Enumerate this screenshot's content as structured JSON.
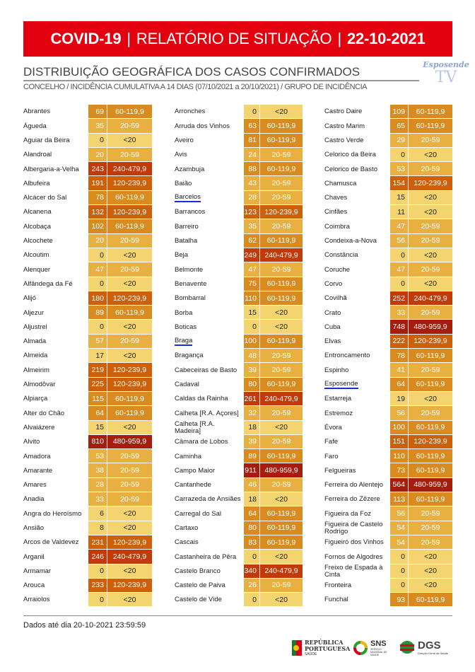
{
  "header": {
    "covid": "COVID-19",
    "sep": "|",
    "report": "RELATÓRIO DE SITUAÇÃO",
    "date": "22-10-2021"
  },
  "title": "DISTRIBUIÇÃO GEOGRÁFICA DOS CASOS CONFIRMADOS",
  "subtitle": "CONCELHO / INCIDÊNCIA CUMULATIVA A 14 DIAS (07/10/2021 a 20/10/2021) / GRUPO DE INCIDÊNCIA",
  "watermark": {
    "line1": "Esposende",
    "line2": "TV"
  },
  "group_colors": {
    "<20": "#f3d46e",
    "20-59": "#e8b041",
    "60-119,9": "#da8b1f",
    "120-239,9": "#cd600b",
    "240-479,9": "#c23a07",
    "480-959,9": "#a61c0d"
  },
  "columns": [
    [
      [
        "Abrantes",
        69,
        "60-119,9"
      ],
      [
        "Águeda",
        35,
        "20-59"
      ],
      [
        "Aguiar da Beira",
        0,
        "<20"
      ],
      [
        "Alandroal",
        20,
        "20-59"
      ],
      [
        "Albergaria-a-Velha",
        243,
        "240-479,9"
      ],
      [
        "Albufeira",
        191,
        "120-239,9"
      ],
      [
        "Alcácer do Sal",
        78,
        "60-119,9"
      ],
      [
        "Alcanena",
        132,
        "120-239,9"
      ],
      [
        "Alcobaça",
        102,
        "60-119,9"
      ],
      [
        "Alcochete",
        20,
        "20-59"
      ],
      [
        "Alcoutim",
        0,
        "<20"
      ],
      [
        "Alenquer",
        47,
        "20-59"
      ],
      [
        "Alfândega da Fé",
        0,
        "<20"
      ],
      [
        "Alijó",
        180,
        "120-239,9"
      ],
      [
        "Aljezur",
        89,
        "60-119,9"
      ],
      [
        "Aljustrel",
        0,
        "<20"
      ],
      [
        "Almada",
        57,
        "20-59"
      ],
      [
        "Almeida",
        17,
        "<20"
      ],
      [
        "Almeirim",
        219,
        "120-239,9"
      ],
      [
        "Almodôvar",
        225,
        "120-239,9"
      ],
      [
        "Alpiarça",
        115,
        "60-119,9"
      ],
      [
        "Alter do Chão",
        64,
        "60-119,9"
      ],
      [
        "Alvaiázere",
        15,
        "<20"
      ],
      [
        "Alvito",
        810,
        "480-959,9"
      ],
      [
        "Amadora",
        53,
        "20-59"
      ],
      [
        "Amarante",
        38,
        "20-59"
      ],
      [
        "Amares",
        28,
        "20-59"
      ],
      [
        "Anadia",
        33,
        "20-59"
      ],
      [
        "Angra do Heroísmo",
        6,
        "<20"
      ],
      [
        "Ansião",
        8,
        "<20"
      ],
      [
        "Arcos de Valdevez",
        231,
        "120-239,9"
      ],
      [
        "Arganil",
        246,
        "240-479,9"
      ],
      [
        "Armamar",
        0,
        "<20"
      ],
      [
        "Arouca",
        233,
        "120-239,9"
      ],
      [
        "Arraiolos",
        0,
        "<20"
      ]
    ],
    [
      [
        "Arronches",
        0,
        "<20"
      ],
      [
        "Arruda dos Vinhos",
        63,
        "60-119,9"
      ],
      [
        "Aveiro",
        81,
        "60-119,9"
      ],
      [
        "Avis",
        24,
        "20-59"
      ],
      [
        "Azambuja",
        88,
        "60-119,9"
      ],
      [
        "Baião",
        43,
        "20-59"
      ],
      [
        "Barcelos",
        28,
        "20-59"
      ],
      [
        "Barrancos",
        123,
        "120-239,9"
      ],
      [
        "Barreiro",
        35,
        "20-59"
      ],
      [
        "Batalha",
        62,
        "60-119,9"
      ],
      [
        "Beja",
        249,
        "240-479,9"
      ],
      [
        "Belmonte",
        47,
        "20-59"
      ],
      [
        "Benavente",
        75,
        "60-119,9"
      ],
      [
        "Bombarral",
        110,
        "60-119,9"
      ],
      [
        "Borba",
        15,
        "<20"
      ],
      [
        "Boticas",
        0,
        "<20"
      ],
      [
        "Braga",
        100,
        "60-119,9"
      ],
      [
        "Bragança",
        48,
        "20-59"
      ],
      [
        "Cabeceiras de Basto",
        39,
        "20-59"
      ],
      [
        "Cadaval",
        80,
        "60-119,9"
      ],
      [
        "Caldas da Rainha",
        261,
        "240-479,9"
      ],
      [
        "Calheta [R.A. Açores]",
        32,
        "20-59"
      ],
      [
        "Calheta [R.A. Madeira]",
        18,
        "<20"
      ],
      [
        "Câmara de Lobos",
        39,
        "20-59"
      ],
      [
        "Caminha",
        89,
        "60-119,9"
      ],
      [
        "Campo Maior",
        911,
        "480-959,9"
      ],
      [
        "Cantanhede",
        46,
        "20-59"
      ],
      [
        "Carrazeda de Ansiães",
        18,
        "<20"
      ],
      [
        "Carregal do Sal",
        64,
        "60-119,9"
      ],
      [
        "Cartaxo",
        80,
        "60-119,9"
      ],
      [
        "Cascais",
        83,
        "60-119,9"
      ],
      [
        "Castanheira de Pêra",
        0,
        "<20"
      ],
      [
        "Castelo Branco",
        340,
        "240-479,9"
      ],
      [
        "Castelo de Paiva",
        26,
        "20-59"
      ],
      [
        "Castelo de Vide",
        0,
        "<20"
      ]
    ],
    [
      [
        "Castro Daire",
        109,
        "60-119,9"
      ],
      [
        "Castro Marim",
        65,
        "60-119,9"
      ],
      [
        "Castro Verde",
        29,
        "20-59"
      ],
      [
        "Celorico da Beira",
        0,
        "<20"
      ],
      [
        "Celorico de Basto",
        53,
        "20-59"
      ],
      [
        "Chamusca",
        154,
        "120-239,9"
      ],
      [
        "Chaves",
        15,
        "<20"
      ],
      [
        "Cinfães",
        11,
        "<20"
      ],
      [
        "Coimbra",
        47,
        "20-59"
      ],
      [
        "Condeixa-a-Nova",
        56,
        "20-59"
      ],
      [
        "Constância",
        0,
        "<20"
      ],
      [
        "Coruche",
        47,
        "20-59"
      ],
      [
        "Corvo",
        0,
        "<20"
      ],
      [
        "Covilhã",
        252,
        "240-479,9"
      ],
      [
        "Crato",
        33,
        "20-59"
      ],
      [
        "Cuba",
        748,
        "480-959,9"
      ],
      [
        "Elvas",
        222,
        "120-239,9"
      ],
      [
        "Entroncamento",
        78,
        "60-119,9"
      ],
      [
        "Espinho",
        41,
        "20-59"
      ],
      [
        "Esposende",
        64,
        "60-119,9"
      ],
      [
        "Estarreja",
        19,
        "<20"
      ],
      [
        "Estremoz",
        56,
        "20-59"
      ],
      [
        "Évora",
        100,
        "60-119,9"
      ],
      [
        "Fafe",
        151,
        "120-239,9"
      ],
      [
        "Faro",
        110,
        "60-119,9"
      ],
      [
        "Felgueiras",
        73,
        "60-119,9"
      ],
      [
        "Ferreira do Alentejo",
        564,
        "480-959,9"
      ],
      [
        "Ferreira do Zêzere",
        113,
        "60-119,9"
      ],
      [
        "Figueira da Foz",
        56,
        "20-59"
      ],
      [
        "Figueira de Castelo Rodrigo",
        54,
        "20-59"
      ],
      [
        "Figueiró dos Vinhos",
        54,
        "20-59"
      ],
      [
        "Fornos de Algodres",
        0,
        "<20"
      ],
      [
        "Freixo de Espada à Cinta",
        0,
        "<20"
      ],
      [
        "Fronteira",
        0,
        "<20"
      ],
      [
        "Funchal",
        93,
        "60-119,9"
      ]
    ]
  ],
  "highlighted": [
    "Barcelos",
    "Braga",
    "Esposende"
  ],
  "footer": {
    "date": "Dados até dia 20-10-2021 23:59:59",
    "logos": {
      "rp": "REPÚBLICA PORTUGUESA",
      "rp_sub": "SAÚDE",
      "sns": "SNS",
      "sns_sub": "SERVIÇO NACIONAL DE SAÚDE",
      "dgs": "DGS",
      "dgs_sub": "Direção-Geral da Saúde"
    }
  }
}
